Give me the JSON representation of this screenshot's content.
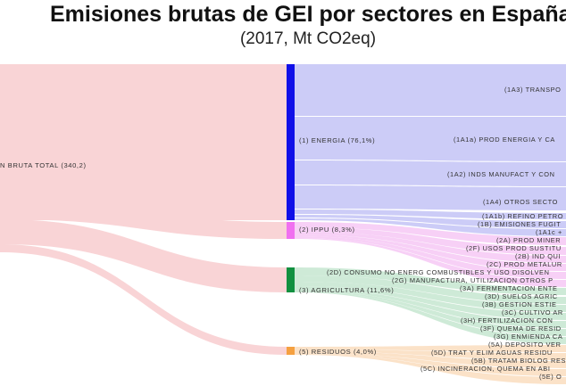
{
  "title": "Emisiones brutas de GEI por sectores en España",
  "subtitle": "(2017, Mt  CO2eq)",
  "colors": {
    "source": "#f9d4d6",
    "energia": "#1010e8",
    "energia_flow": "#c9c9f7",
    "ippu": "#f070f0",
    "ippu_flow": "#f7cdf5",
    "agri": "#119040",
    "agri_flow": "#cbe9d5",
    "residuos": "#f5a040",
    "residuos_flow": "#fbe0c5"
  },
  "source": {
    "label": "N BRUTA TOTAL (340,2)"
  },
  "nodes": [
    {
      "label": "(1) ENERGIA (76,1%)"
    },
    {
      "label": "(2) IPPU (8,3%)"
    },
    {
      "label": "(3) AGRICULTURA (11,6%)"
    },
    {
      "label": "(5) RESIDUOS (4,0%)"
    }
  ],
  "targets": [
    "(1A3) TRANSPO",
    "(1A1a) PROD ENERGIA Y CA",
    "(1A2) INDS MANUFACT Y CON",
    "(1A4) OTROS SECTO",
    "(1A1b) REFINO PETRO",
    "(1B) EMISIONES FUGIT",
    "(1A1c +",
    "(2A) PROD MINER",
    "(2F) USOS PROD SUSTITU",
    "(2B) IND QUI",
    "(2C) PROD METALUR",
    "(2D) CONSUMO NO ENERG COMBUSTIBLES Y USO DISOLVEN",
    "(2G) MANUFACTURA, UTILIZACION OTROS P",
    "(3A) FERMENTACION ENTE",
    "(3D) SUELOS AGRIC",
    "(3B) GESTION ESTIE",
    "(3C) CULTIVO AR",
    "(3H) FERTILIZACION CON",
    "(3F) QUEMA DE RESID",
    "(3G) ENMIENDA CA",
    "(5A) DEPOSITO VER",
    "(5D) TRAT Y ELIM AGUAS RESIDU",
    "(5B) TRATAM BIOLOG RES",
    "(5C) INCINERACION, QUEMA EN ABI",
    "(5E) O"
  ]
}
